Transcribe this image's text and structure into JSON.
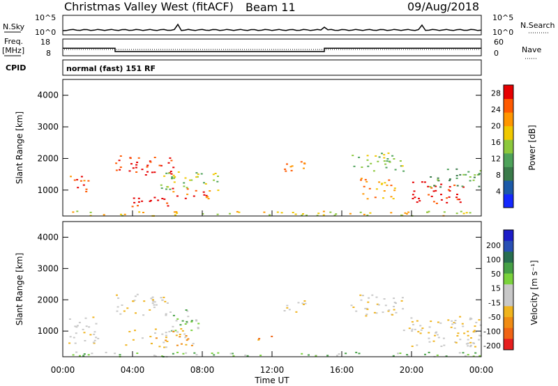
{
  "header": {
    "station": "Christmas Valley West (fitACF)",
    "beam": "Beam 11",
    "date": "09/Aug/2018"
  },
  "panel_labels": {
    "nsky": "N.Sky",
    "nsearch": "N.Search",
    "freq_line1": "Freq.",
    "freq_line2": "[MHz]",
    "nave": "Nave",
    "cpid": "CPID",
    "cpid_value": "normal (fast) 151 RF"
  },
  "colors": {
    "power_scale": [
      "#1428ff",
      "#1c5aa8",
      "#3a7a4a",
      "#4ea25a",
      "#8cc83c",
      "#f0c800",
      "#ff9600",
      "#ff5a00",
      "#e60000"
    ],
    "velocity_scale": [
      "#1c1cc8",
      "#2850b4",
      "#286e50",
      "#46a046",
      "#7ad23c",
      "#c8c8c8",
      "#c8c8c8",
      "#f0b41e",
      "#f08c14",
      "#f06414",
      "#e61e1e"
    ]
  },
  "chart_data": [
    {
      "type": "line",
      "name": "noise-panel",
      "left_axis_labels": [
        "10^5",
        "10^0"
      ],
      "right_axis_labels": [
        "10^5",
        "10^0"
      ]
    },
    {
      "type": "line",
      "name": "frequency-panel",
      "left_axis_labels": [
        "18",
        "8"
      ],
      "right_axis_labels": [
        "60",
        "0"
      ],
      "freq_segments": [
        {
          "x": [
            0,
            3.0
          ],
          "y": 12.5
        },
        {
          "x": [
            3.0,
            15.0
          ],
          "y": 10.5
        },
        {
          "x": [
            15.0,
            24.0
          ],
          "y": 12.5
        }
      ]
    },
    {
      "type": "heatmap",
      "name": "power",
      "ylabel": "Slant Range [km]",
      "yticks": [
        "1000",
        "2000",
        "3000",
        "4000"
      ],
      "ylim": [
        180,
        4500
      ],
      "colorbar_label": "Power [dB]",
      "colorbar_ticks": [
        "4",
        "8",
        "12",
        "16",
        "20",
        "24",
        "28"
      ],
      "clim": [
        0,
        30
      ]
    },
    {
      "type": "heatmap",
      "name": "velocity",
      "ylabel": "Slant Range [km]",
      "yticks": [
        "1000",
        "2000",
        "3000",
        "4000"
      ],
      "ylim": [
        180,
        4500
      ],
      "xlabel": "Time UT",
      "xticks": [
        "00:00",
        "04:00",
        "08:00",
        "12:00",
        "16:00",
        "20:00",
        "00:00"
      ],
      "colorbar_label": "Velocity [m s⁻¹]",
      "colorbar_ticks": [
        "200",
        "100",
        "50",
        "15",
        "-15",
        "-50",
        "-100",
        "-200"
      ]
    }
  ],
  "scatter_regions": {
    "power": [
      {
        "t0": 0.4,
        "t1": 1.5,
        "r0": 900,
        "r1": 1500,
        "c": 7
      },
      {
        "t0": 3.0,
        "t1": 6.5,
        "r0": 1500,
        "r1": 2100,
        "c": 8
      },
      {
        "t0": 5.5,
        "t1": 9.0,
        "r0": 1000,
        "r1": 1600,
        "c": 4
      },
      {
        "t0": 3.0,
        "t1": 6.0,
        "r0": 500,
        "r1": 800,
        "c": 8
      },
      {
        "t0": 6.0,
        "t1": 8.5,
        "r0": 750,
        "r1": 1100,
        "c": 7
      },
      {
        "t0": 0.5,
        "t1": 24.0,
        "r0": 200,
        "r1": 350,
        "c": 5
      },
      {
        "t0": 12.5,
        "t1": 14.0,
        "r0": 1600,
        "r1": 2000,
        "c": 7
      },
      {
        "t0": 16.5,
        "t1": 19.5,
        "r0": 1600,
        "r1": 2200,
        "c": 4
      },
      {
        "t0": 17.0,
        "t1": 19.0,
        "r0": 700,
        "r1": 1400,
        "c": 6
      },
      {
        "t0": 20.0,
        "t1": 23.0,
        "r0": 600,
        "r1": 1300,
        "c": 8
      },
      {
        "t0": 21.0,
        "t1": 24.0,
        "r0": 1100,
        "r1": 1700,
        "c": 3
      }
    ],
    "velocity": [
      {
        "t0": 0.3,
        "t1": 2.0,
        "r0": 600,
        "r1": 1500,
        "c": 6
      },
      {
        "t0": 3.0,
        "t1": 6.0,
        "r0": 1500,
        "r1": 2200,
        "c": 6
      },
      {
        "t0": 6.0,
        "t1": 8.0,
        "r0": 1000,
        "r1": 1700,
        "c": 4
      },
      {
        "t0": 3.5,
        "t1": 7.5,
        "r0": 500,
        "r1": 1100,
        "c": 7
      },
      {
        "t0": 0.5,
        "t1": 24.0,
        "r0": 200,
        "r1": 350,
        "c": 4
      },
      {
        "t0": 11.0,
        "t1": 12.0,
        "r0": 700,
        "r1": 900,
        "c": 8
      },
      {
        "t0": 12.5,
        "t1": 14.0,
        "r0": 1600,
        "r1": 2000,
        "c": 6
      },
      {
        "t0": 16.5,
        "t1": 19.5,
        "r0": 1500,
        "r1": 2200,
        "c": 6
      },
      {
        "t0": 19.5,
        "t1": 24.0,
        "r0": 500,
        "r1": 1500,
        "c": 6
      }
    ]
  }
}
